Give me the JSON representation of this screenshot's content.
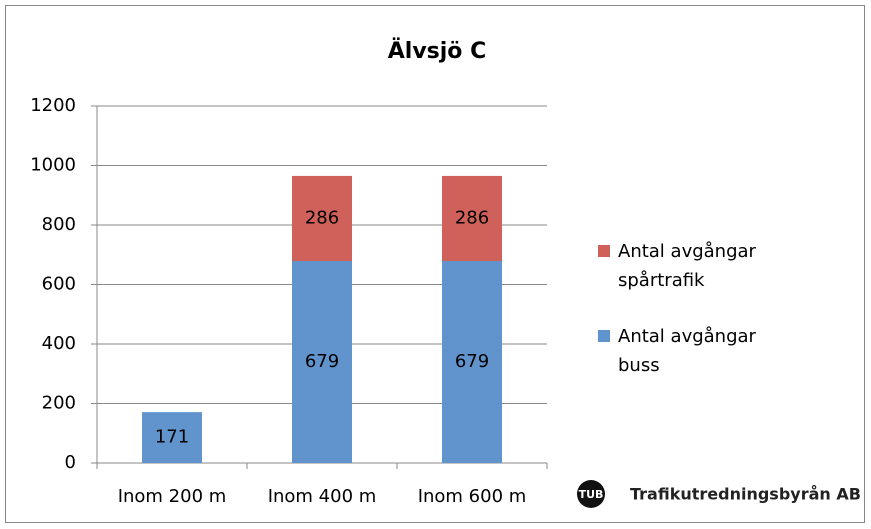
{
  "chart_data": {
    "type": "stacked-bar",
    "title": "Älvsjö C",
    "categories": [
      "Inom 200 m",
      "Inom 400 m",
      "Inom 600 m"
    ],
    "series": [
      {
        "name": "Antal avgångar buss",
        "color": "#6194cc",
        "values": [
          171,
          679,
          679
        ]
      },
      {
        "name": "Antal avgångar spårtrafik",
        "color": "#d0605a",
        "values": [
          null,
          286,
          286
        ]
      }
    ],
    "ylim": [
      0,
      1200
    ],
    "yticks": [
      0,
      200,
      400,
      600,
      800,
      1000,
      1200
    ],
    "grid": true,
    "legend": "right"
  },
  "logo": {
    "badge": "TUB",
    "text": "Trafikutredningsbyrån AB"
  }
}
